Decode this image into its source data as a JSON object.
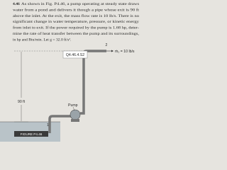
{
  "problem": {
    "number": "4.46",
    "lines": [
      "As shown in Fig. P4.46, a pump operating at steady state draws",
      "water from a pond and delivers it though a pipe whose exit is 90 ft",
      "above the inlet. At the exit, the mass flow rate is 10 lb/s. There is no",
      "significant change in water temperature, pressure, or kinetic energy",
      "from inlet to exit. If the power required by the pump is 1.68 hp, deter-",
      "mine the rate of heat transfer between the pump and its surroundings,",
      "in hp and Btu/min. Let g = 32.0 ft/s²."
    ]
  },
  "figure": {
    "exit_label": "2",
    "flow_label": "ṁ₂ = 10 lb/s",
    "tooltip": "Q4.46.4.S2",
    "height_label": "90 ft",
    "pump_label": "Pump",
    "inlet_label": "1",
    "caption": "FIGURE P4.46"
  }
}
